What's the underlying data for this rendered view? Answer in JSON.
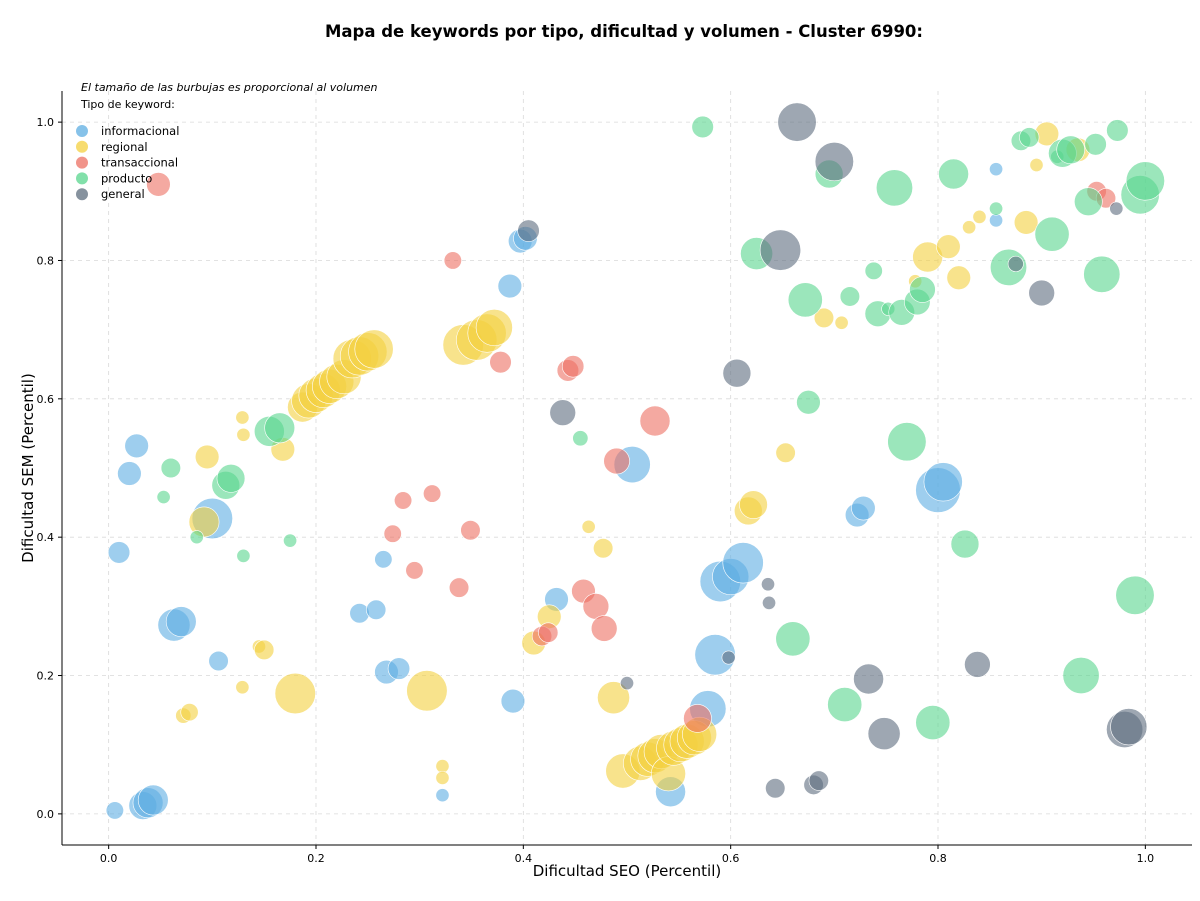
{
  "chart_data": {
    "type": "scatter",
    "title": "Mapa de keywords por tipo, dificultad y volumen - Cluster 6990:",
    "xlabel": "Dificultad SEO (Percentil)",
    "ylabel": "Dificultad SEM (Percentil)",
    "note": "El tamaño de las burbujas es proporcional al volumen",
    "legend_title": "Tipo de keyword:",
    "legend_position": "top-left",
    "grid": true,
    "xlim": [
      -0.045,
      1.045
    ],
    "ylim": [
      -0.045,
      1.045
    ],
    "xticks": [
      "0.0",
      "0.2",
      "0.4",
      "0.6",
      "0.8",
      "1.0"
    ],
    "yticks": [
      "0.0",
      "0.2",
      "0.4",
      "0.6",
      "0.8",
      "1.0"
    ],
    "series": [
      {
        "name": "informacional",
        "color": "#5dade2",
        "points": [
          {
            "x": 0.006,
            "y": 0.005,
            "v": 5
          },
          {
            "x": 0.01,
            "y": 0.378,
            "v": 7
          },
          {
            "x": 0.027,
            "y": 0.532,
            "v": 8
          },
          {
            "x": 0.02,
            "y": 0.492,
            "v": 8
          },
          {
            "x": 0.033,
            "y": 0.012,
            "v": 10
          },
          {
            "x": 0.038,
            "y": 0.016,
            "v": 11
          },
          {
            "x": 0.043,
            "y": 0.02,
            "v": 11
          },
          {
            "x": 0.063,
            "y": 0.273,
            "v": 12
          },
          {
            "x": 0.07,
            "y": 0.278,
            "v": 11
          },
          {
            "x": 0.1,
            "y": 0.427,
            "v": 16
          },
          {
            "x": 0.106,
            "y": 0.221,
            "v": 6
          },
          {
            "x": 0.265,
            "y": 0.368,
            "v": 5
          },
          {
            "x": 0.242,
            "y": 0.29,
            "v": 6
          },
          {
            "x": 0.258,
            "y": 0.295,
            "v": 6
          },
          {
            "x": 0.268,
            "y": 0.205,
            "v": 8
          },
          {
            "x": 0.28,
            "y": 0.21,
            "v": 7
          },
          {
            "x": 0.322,
            "y": 0.027,
            "v": 3
          },
          {
            "x": 0.387,
            "y": 0.763,
            "v": 8
          },
          {
            "x": 0.39,
            "y": 0.163,
            "v": 8
          },
          {
            "x": 0.397,
            "y": 0.828,
            "v": 8
          },
          {
            "x": 0.402,
            "y": 0.832,
            "v": 8
          },
          {
            "x": 0.432,
            "y": 0.31,
            "v": 8
          },
          {
            "x": 0.505,
            "y": 0.505,
            "v": 14
          },
          {
            "x": 0.542,
            "y": 0.032,
            "v": 11
          },
          {
            "x": 0.578,
            "y": 0.152,
            "v": 14
          },
          {
            "x": 0.585,
            "y": 0.23,
            "v": 16
          },
          {
            "x": 0.59,
            "y": 0.336,
            "v": 16
          },
          {
            "x": 0.6,
            "y": 0.343,
            "v": 14
          },
          {
            "x": 0.612,
            "y": 0.363,
            "v": 16
          },
          {
            "x": 0.722,
            "y": 0.432,
            "v": 8
          },
          {
            "x": 0.728,
            "y": 0.442,
            "v": 8
          },
          {
            "x": 0.8,
            "y": 0.468,
            "v": 18
          },
          {
            "x": 0.805,
            "y": 0.48,
            "v": 15
          },
          {
            "x": 0.856,
            "y": 0.932,
            "v": 3
          },
          {
            "x": 0.856,
            "y": 0.858,
            "v": 3
          }
        ]
      },
      {
        "name": "regional",
        "color": "#f4d03f",
        "points": [
          {
            "x": 0.072,
            "y": 0.142,
            "v": 4
          },
          {
            "x": 0.078,
            "y": 0.147,
            "v": 5
          },
          {
            "x": 0.092,
            "y": 0.422,
            "v": 11
          },
          {
            "x": 0.095,
            "y": 0.516,
            "v": 8
          },
          {
            "x": 0.129,
            "y": 0.573,
            "v": 3
          },
          {
            "x": 0.13,
            "y": 0.548,
            "v": 3
          },
          {
            "x": 0.129,
            "y": 0.183,
            "v": 3
          },
          {
            "x": 0.145,
            "y": 0.242,
            "v": 3
          },
          {
            "x": 0.15,
            "y": 0.237,
            "v": 6
          },
          {
            "x": 0.168,
            "y": 0.527,
            "v": 8
          },
          {
            "x": 0.18,
            "y": 0.174,
            "v": 16
          },
          {
            "x": 0.187,
            "y": 0.588,
            "v": 11
          },
          {
            "x": 0.193,
            "y": 0.597,
            "v": 13
          },
          {
            "x": 0.2,
            "y": 0.605,
            "v": 13
          },
          {
            "x": 0.207,
            "y": 0.612,
            "v": 13
          },
          {
            "x": 0.213,
            "y": 0.618,
            "v": 13
          },
          {
            "x": 0.22,
            "y": 0.625,
            "v": 13
          },
          {
            "x": 0.227,
            "y": 0.632,
            "v": 13
          },
          {
            "x": 0.235,
            "y": 0.658,
            "v": 15
          },
          {
            "x": 0.242,
            "y": 0.662,
            "v": 15
          },
          {
            "x": 0.25,
            "y": 0.668,
            "v": 15
          },
          {
            "x": 0.256,
            "y": 0.672,
            "v": 15
          },
          {
            "x": 0.307,
            "y": 0.178,
            "v": 16
          },
          {
            "x": 0.322,
            "y": 0.069,
            "v": 3
          },
          {
            "x": 0.322,
            "y": 0.052,
            "v": 3
          },
          {
            "x": 0.342,
            "y": 0.678,
            "v": 16
          },
          {
            "x": 0.355,
            "y": 0.685,
            "v": 16
          },
          {
            "x": 0.365,
            "y": 0.695,
            "v": 15
          },
          {
            "x": 0.372,
            "y": 0.703,
            "v": 14
          },
          {
            "x": 0.41,
            "y": 0.247,
            "v": 8
          },
          {
            "x": 0.425,
            "y": 0.285,
            "v": 8
          },
          {
            "x": 0.463,
            "y": 0.415,
            "v": 3
          },
          {
            "x": 0.477,
            "y": 0.384,
            "v": 6
          },
          {
            "x": 0.487,
            "y": 0.168,
            "v": 12
          },
          {
            "x": 0.496,
            "y": 0.062,
            "v": 13
          },
          {
            "x": 0.513,
            "y": 0.073,
            "v": 13
          },
          {
            "x": 0.52,
            "y": 0.079,
            "v": 13
          },
          {
            "x": 0.527,
            "y": 0.084,
            "v": 13
          },
          {
            "x": 0.533,
            "y": 0.09,
            "v": 13
          },
          {
            "x": 0.54,
            "y": 0.058,
            "v": 13
          },
          {
            "x": 0.545,
            "y": 0.095,
            "v": 13
          },
          {
            "x": 0.552,
            "y": 0.1,
            "v": 13
          },
          {
            "x": 0.558,
            "y": 0.105,
            "v": 13
          },
          {
            "x": 0.565,
            "y": 0.11,
            "v": 13
          },
          {
            "x": 0.57,
            "y": 0.115,
            "v": 13
          },
          {
            "x": 0.617,
            "y": 0.438,
            "v": 10
          },
          {
            "x": 0.622,
            "y": 0.447,
            "v": 10
          },
          {
            "x": 0.653,
            "y": 0.522,
            "v": 6
          },
          {
            "x": 0.69,
            "y": 0.717,
            "v": 6
          },
          {
            "x": 0.707,
            "y": 0.71,
            "v": 3
          },
          {
            "x": 0.778,
            "y": 0.77,
            "v": 3
          },
          {
            "x": 0.79,
            "y": 0.805,
            "v": 11
          },
          {
            "x": 0.81,
            "y": 0.82,
            "v": 8
          },
          {
            "x": 0.82,
            "y": 0.775,
            "v": 8
          },
          {
            "x": 0.83,
            "y": 0.848,
            "v": 3
          },
          {
            "x": 0.84,
            "y": 0.863,
            "v": 3
          },
          {
            "x": 0.885,
            "y": 0.855,
            "v": 8
          },
          {
            "x": 0.895,
            "y": 0.938,
            "v": 3
          },
          {
            "x": 0.905,
            "y": 0.983,
            "v": 8
          },
          {
            "x": 0.935,
            "y": 0.96,
            "v": 8
          }
        ]
      },
      {
        "name": "transaccional",
        "color": "#ec7063",
        "points": [
          {
            "x": 0.048,
            "y": 0.91,
            "v": 8
          },
          {
            "x": 0.274,
            "y": 0.405,
            "v": 5
          },
          {
            "x": 0.284,
            "y": 0.453,
            "v": 5
          },
          {
            "x": 0.295,
            "y": 0.352,
            "v": 5
          },
          {
            "x": 0.312,
            "y": 0.463,
            "v": 5
          },
          {
            "x": 0.332,
            "y": 0.8,
            "v": 5
          },
          {
            "x": 0.338,
            "y": 0.327,
            "v": 6
          },
          {
            "x": 0.349,
            "y": 0.41,
            "v": 6
          },
          {
            "x": 0.378,
            "y": 0.653,
            "v": 7
          },
          {
            "x": 0.418,
            "y": 0.257,
            "v": 6
          },
          {
            "x": 0.424,
            "y": 0.262,
            "v": 6
          },
          {
            "x": 0.443,
            "y": 0.641,
            "v": 7
          },
          {
            "x": 0.448,
            "y": 0.647,
            "v": 7
          },
          {
            "x": 0.458,
            "y": 0.322,
            "v": 8
          },
          {
            "x": 0.47,
            "y": 0.3,
            "v": 9
          },
          {
            "x": 0.478,
            "y": 0.268,
            "v": 9
          },
          {
            "x": 0.49,
            "y": 0.51,
            "v": 9
          },
          {
            "x": 0.527,
            "y": 0.568,
            "v": 11
          },
          {
            "x": 0.568,
            "y": 0.138,
            "v": 10
          },
          {
            "x": 0.953,
            "y": 0.9,
            "v": 6
          },
          {
            "x": 0.962,
            "y": 0.89,
            "v": 6
          }
        ]
      },
      {
        "name": "producto",
        "color": "#58d68d",
        "points": [
          {
            "x": 0.053,
            "y": 0.458,
            "v": 3
          },
          {
            "x": 0.06,
            "y": 0.5,
            "v": 6
          },
          {
            "x": 0.085,
            "y": 0.4,
            "v": 3
          },
          {
            "x": 0.113,
            "y": 0.475,
            "v": 10
          },
          {
            "x": 0.118,
            "y": 0.485,
            "v": 10
          },
          {
            "x": 0.13,
            "y": 0.373,
            "v": 3
          },
          {
            "x": 0.155,
            "y": 0.553,
            "v": 11
          },
          {
            "x": 0.165,
            "y": 0.558,
            "v": 11
          },
          {
            "x": 0.175,
            "y": 0.395,
            "v": 3
          },
          {
            "x": 0.455,
            "y": 0.543,
            "v": 4
          },
          {
            "x": 0.573,
            "y": 0.993,
            "v": 7
          },
          {
            "x": 0.625,
            "y": 0.81,
            "v": 12
          },
          {
            "x": 0.66,
            "y": 0.253,
            "v": 13
          },
          {
            "x": 0.672,
            "y": 0.743,
            "v": 13
          },
          {
            "x": 0.675,
            "y": 0.595,
            "v": 8
          },
          {
            "x": 0.695,
            "y": 0.925,
            "v": 10
          },
          {
            "x": 0.71,
            "y": 0.158,
            "v": 13
          },
          {
            "x": 0.715,
            "y": 0.748,
            "v": 6
          },
          {
            "x": 0.738,
            "y": 0.785,
            "v": 5
          },
          {
            "x": 0.742,
            "y": 0.723,
            "v": 9
          },
          {
            "x": 0.752,
            "y": 0.73,
            "v": 3
          },
          {
            "x": 0.758,
            "y": 0.905,
            "v": 14
          },
          {
            "x": 0.765,
            "y": 0.725,
            "v": 9
          },
          {
            "x": 0.77,
            "y": 0.538,
            "v": 15
          },
          {
            "x": 0.78,
            "y": 0.74,
            "v": 9
          },
          {
            "x": 0.785,
            "y": 0.758,
            "v": 9
          },
          {
            "x": 0.795,
            "y": 0.132,
            "v": 13
          },
          {
            "x": 0.815,
            "y": 0.925,
            "v": 11
          },
          {
            "x": 0.826,
            "y": 0.39,
            "v": 10
          },
          {
            "x": 0.856,
            "y": 0.875,
            "v": 3
          },
          {
            "x": 0.868,
            "y": 0.79,
            "v": 14
          },
          {
            "x": 0.88,
            "y": 0.973,
            "v": 6
          },
          {
            "x": 0.888,
            "y": 0.978,
            "v": 6
          },
          {
            "x": 0.91,
            "y": 0.838,
            "v": 13
          },
          {
            "x": 0.915,
            "y": 0.95,
            "v": 3
          },
          {
            "x": 0.92,
            "y": 0.955,
            "v": 10
          },
          {
            "x": 0.928,
            "y": 0.96,
            "v": 10
          },
          {
            "x": 0.938,
            "y": 0.2,
            "v": 14
          },
          {
            "x": 0.945,
            "y": 0.885,
            "v": 10
          },
          {
            "x": 0.952,
            "y": 0.968,
            "v": 7
          },
          {
            "x": 0.958,
            "y": 0.78,
            "v": 14
          },
          {
            "x": 0.973,
            "y": 0.988,
            "v": 7
          },
          {
            "x": 0.99,
            "y": 0.316,
            "v": 15
          },
          {
            "x": 0.995,
            "y": 0.895,
            "v": 15
          },
          {
            "x": 1.0,
            "y": 0.915,
            "v": 15
          }
        ]
      },
      {
        "name": "general",
        "color": "#5d6d7e",
        "points": [
          {
            "x": 0.405,
            "y": 0.843,
            "v": 7
          },
          {
            "x": 0.438,
            "y": 0.58,
            "v": 9
          },
          {
            "x": 0.5,
            "y": 0.189,
            "v": 3
          },
          {
            "x": 0.598,
            "y": 0.226,
            "v": 3
          },
          {
            "x": 0.606,
            "y": 0.637,
            "v": 10
          },
          {
            "x": 0.636,
            "y": 0.332,
            "v": 3
          },
          {
            "x": 0.637,
            "y": 0.305,
            "v": 3
          },
          {
            "x": 0.643,
            "y": 0.037,
            "v": 6
          },
          {
            "x": 0.648,
            "y": 0.815,
            "v": 16
          },
          {
            "x": 0.664,
            "y": 1.0,
            "v": 15
          },
          {
            "x": 0.68,
            "y": 0.042,
            "v": 6
          },
          {
            "x": 0.685,
            "y": 0.048,
            "v": 6
          },
          {
            "x": 0.7,
            "y": 0.943,
            "v": 15
          },
          {
            "x": 0.733,
            "y": 0.195,
            "v": 11
          },
          {
            "x": 0.748,
            "y": 0.116,
            "v": 12
          },
          {
            "x": 0.838,
            "y": 0.216,
            "v": 9
          },
          {
            "x": 0.875,
            "y": 0.795,
            "v": 4
          },
          {
            "x": 0.9,
            "y": 0.753,
            "v": 9
          },
          {
            "x": 0.972,
            "y": 0.875,
            "v": 3
          },
          {
            "x": 0.98,
            "y": 0.122,
            "v": 14
          },
          {
            "x": 0.984,
            "y": 0.126,
            "v": 14
          }
        ]
      }
    ]
  }
}
